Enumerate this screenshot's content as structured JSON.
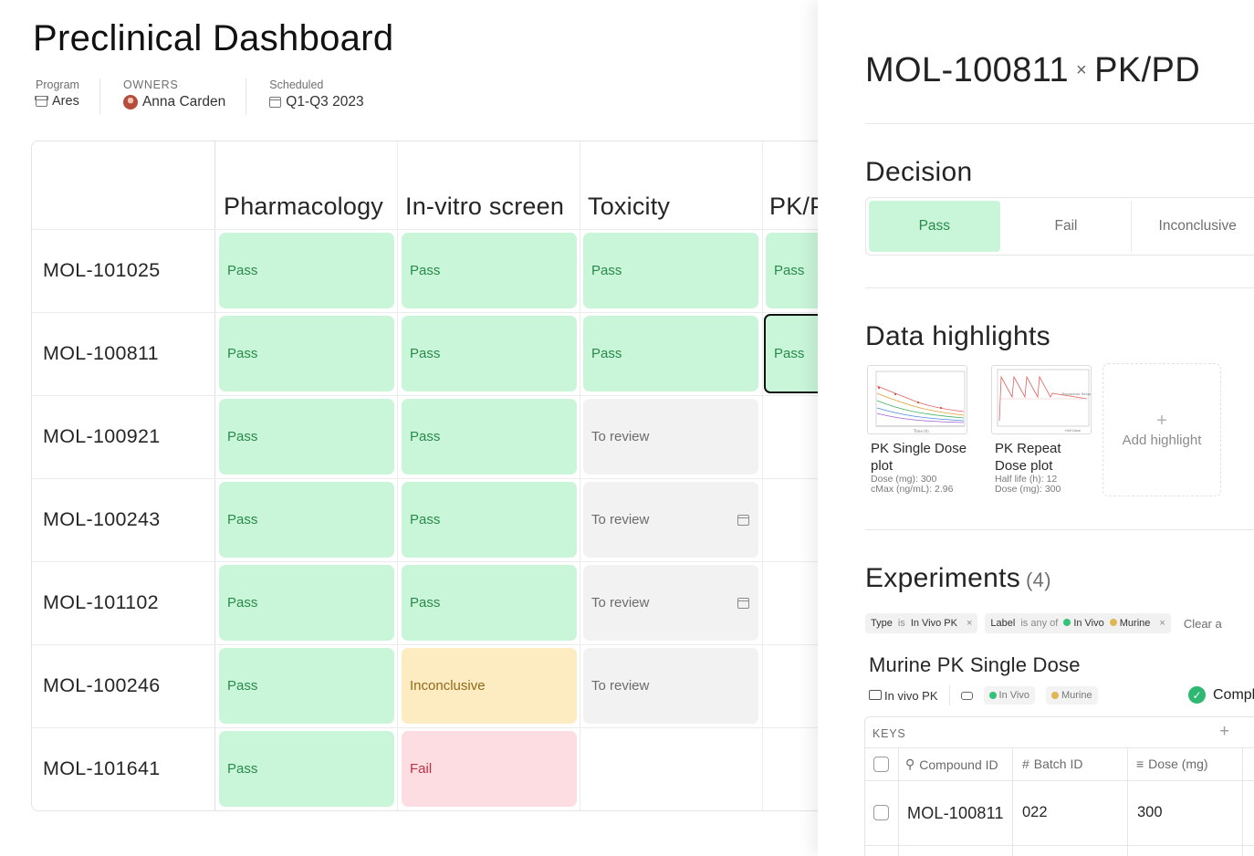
{
  "dashboard": {
    "title": "Preclinical Dashboard",
    "meta": {
      "program_label": "Program",
      "program_value": "Ares",
      "owners_label": "OWNERS",
      "owners_value": "Anna Carden",
      "scheduled_label": "Scheduled",
      "scheduled_value": "Q1-Q3 2023"
    },
    "columns": [
      "Pharmacology",
      "In-vitro screen",
      "Toxicity",
      "PK/P"
    ],
    "rows": [
      {
        "id": "MOL-101025",
        "cells": [
          "Pass",
          "Pass",
          "Pass",
          "Pass"
        ]
      },
      {
        "id": "MOL-100811",
        "cells": [
          "Pass",
          "Pass",
          "Pass",
          "Pass"
        ]
      },
      {
        "id": "MOL-100921",
        "cells": [
          "Pass",
          "Pass",
          "To review"
        ]
      },
      {
        "id": "MOL-100243",
        "cells": [
          "Pass",
          "Pass",
          "To review"
        ]
      },
      {
        "id": "MOL-101102",
        "cells": [
          "Pass",
          "Pass",
          "To review"
        ]
      },
      {
        "id": "MOL-100246",
        "cells": [
          "Pass",
          "Inconclusive",
          "To review"
        ]
      },
      {
        "id": "MOL-101641",
        "cells": [
          "Pass",
          "Fail"
        ]
      }
    ]
  },
  "panel": {
    "title_compound": "MOL-100811",
    "title_times": "×",
    "title_assay": "PK/PD",
    "decision": {
      "heading": "Decision",
      "options": [
        "Pass",
        "Fail",
        "Inconclusive"
      ],
      "selected": "Pass"
    },
    "highlights": {
      "heading": "Data highlights",
      "cards": [
        {
          "name": "PK Single Dose plot",
          "meta1": "Dose (mg): 300",
          "meta2": "cMax (ng/mL): 2.96"
        },
        {
          "name": "PK Repeat Dose plot",
          "meta1": "Half life (h): 12",
          "meta2": "Dose (mg): 300"
        }
      ],
      "add_plus": "+",
      "add_label": "Add highlight"
    },
    "experiments": {
      "heading": "Experiments",
      "count": "(4)",
      "filters": {
        "type_key": "Type",
        "type_op": "is",
        "type_value": "In Vivo PK",
        "label_key": "Label",
        "label_op": "is any of",
        "label_values": [
          "In Vivo",
          "Murine"
        ],
        "clear": "Clear a",
        "close": "×"
      },
      "item": {
        "title": "Murine PK Single Dose",
        "folder": "In vivo PK",
        "tags": [
          "In Vivo",
          "Murine"
        ],
        "status": "Compl",
        "status_check": "✓",
        "table": {
          "section": "KEYS",
          "plus": "+",
          "headers": [
            "Compound ID",
            "Batch ID",
            "Dose (mg)"
          ],
          "header_icons": [
            "⚲",
            "#",
            "≡"
          ],
          "row": [
            "MOL-100811",
            "022",
            "300"
          ]
        }
      }
    },
    "colors": {
      "pass_bg": "#c9f5d9",
      "pass_fg": "#2a8a4b",
      "review_bg": "#f2f2f2",
      "inconclusive_bg": "#fdecc2",
      "fail_bg": "#fddde2",
      "fail_fg": "#bd3244"
    }
  }
}
